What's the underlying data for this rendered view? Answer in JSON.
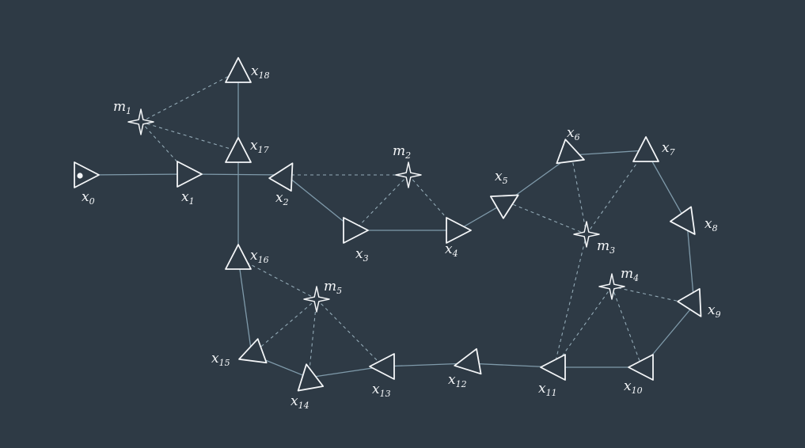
{
  "diagram": {
    "poses": [
      {
        "id": "x0",
        "base": "x",
        "sub": "0"
      },
      {
        "id": "x1",
        "base": "x",
        "sub": "1"
      },
      {
        "id": "x2",
        "base": "x",
        "sub": "2"
      },
      {
        "id": "x3",
        "base": "x",
        "sub": "3"
      },
      {
        "id": "x4",
        "base": "x",
        "sub": "4"
      },
      {
        "id": "x5",
        "base": "x",
        "sub": "5"
      },
      {
        "id": "x6",
        "base": "x",
        "sub": "6"
      },
      {
        "id": "x7",
        "base": "x",
        "sub": "7"
      },
      {
        "id": "x8",
        "base": "x",
        "sub": "8"
      },
      {
        "id": "x9",
        "base": "x",
        "sub": "9"
      },
      {
        "id": "x10",
        "base": "x",
        "sub": "10"
      },
      {
        "id": "x11",
        "base": "x",
        "sub": "11"
      },
      {
        "id": "x12",
        "base": "x",
        "sub": "12"
      },
      {
        "id": "x13",
        "base": "x",
        "sub": "13"
      },
      {
        "id": "x14",
        "base": "x",
        "sub": "14"
      },
      {
        "id": "x15",
        "base": "x",
        "sub": "15"
      },
      {
        "id": "x16",
        "base": "x",
        "sub": "16"
      },
      {
        "id": "x17",
        "base": "x",
        "sub": "17"
      },
      {
        "id": "x18",
        "base": "x",
        "sub": "18"
      }
    ],
    "landmarks": [
      {
        "id": "m1",
        "base": "m",
        "sub": "1"
      },
      {
        "id": "m2",
        "base": "m",
        "sub": "2"
      },
      {
        "id": "m3",
        "base": "m",
        "sub": "3"
      },
      {
        "id": "m4",
        "base": "m",
        "sub": "4"
      },
      {
        "id": "m5",
        "base": "m",
        "sub": "5"
      }
    ],
    "odometry_edges": [
      [
        "x0",
        "x1"
      ],
      [
        "x1",
        "x2"
      ],
      [
        "x2",
        "x3"
      ],
      [
        "x3",
        "x4"
      ],
      [
        "x4",
        "x5"
      ],
      [
        "x5",
        "x6"
      ],
      [
        "x6",
        "x7"
      ],
      [
        "x7",
        "x8"
      ],
      [
        "x8",
        "x9"
      ],
      [
        "x9",
        "x10"
      ],
      [
        "x10",
        "x11"
      ],
      [
        "x11",
        "x12"
      ],
      [
        "x12",
        "x13"
      ],
      [
        "x13",
        "x14"
      ],
      [
        "x14",
        "x15"
      ],
      [
        "x15",
        "x16"
      ],
      [
        "x16",
        "x17"
      ],
      [
        "x17",
        "x18"
      ]
    ],
    "observation_edges": [
      [
        "m1",
        "x18"
      ],
      [
        "m1",
        "x17"
      ],
      [
        "m1",
        "x1"
      ],
      [
        "m2",
        "x2"
      ],
      [
        "m2",
        "x3"
      ],
      [
        "m2",
        "x4"
      ],
      [
        "m3",
        "x5"
      ],
      [
        "m3",
        "x6"
      ],
      [
        "m3",
        "x7"
      ],
      [
        "m3",
        "x11"
      ],
      [
        "m4",
        "x9"
      ],
      [
        "m4",
        "x10"
      ],
      [
        "m4",
        "x11"
      ],
      [
        "m5",
        "x16"
      ],
      [
        "m5",
        "x15"
      ],
      [
        "m5",
        "x14"
      ],
      [
        "m5",
        "x13"
      ]
    ],
    "colors": {
      "background": "#2e3a45",
      "odometry": "#7f9aaa",
      "observation": "#93aab6",
      "foreground": "#f4f6f8"
    }
  }
}
